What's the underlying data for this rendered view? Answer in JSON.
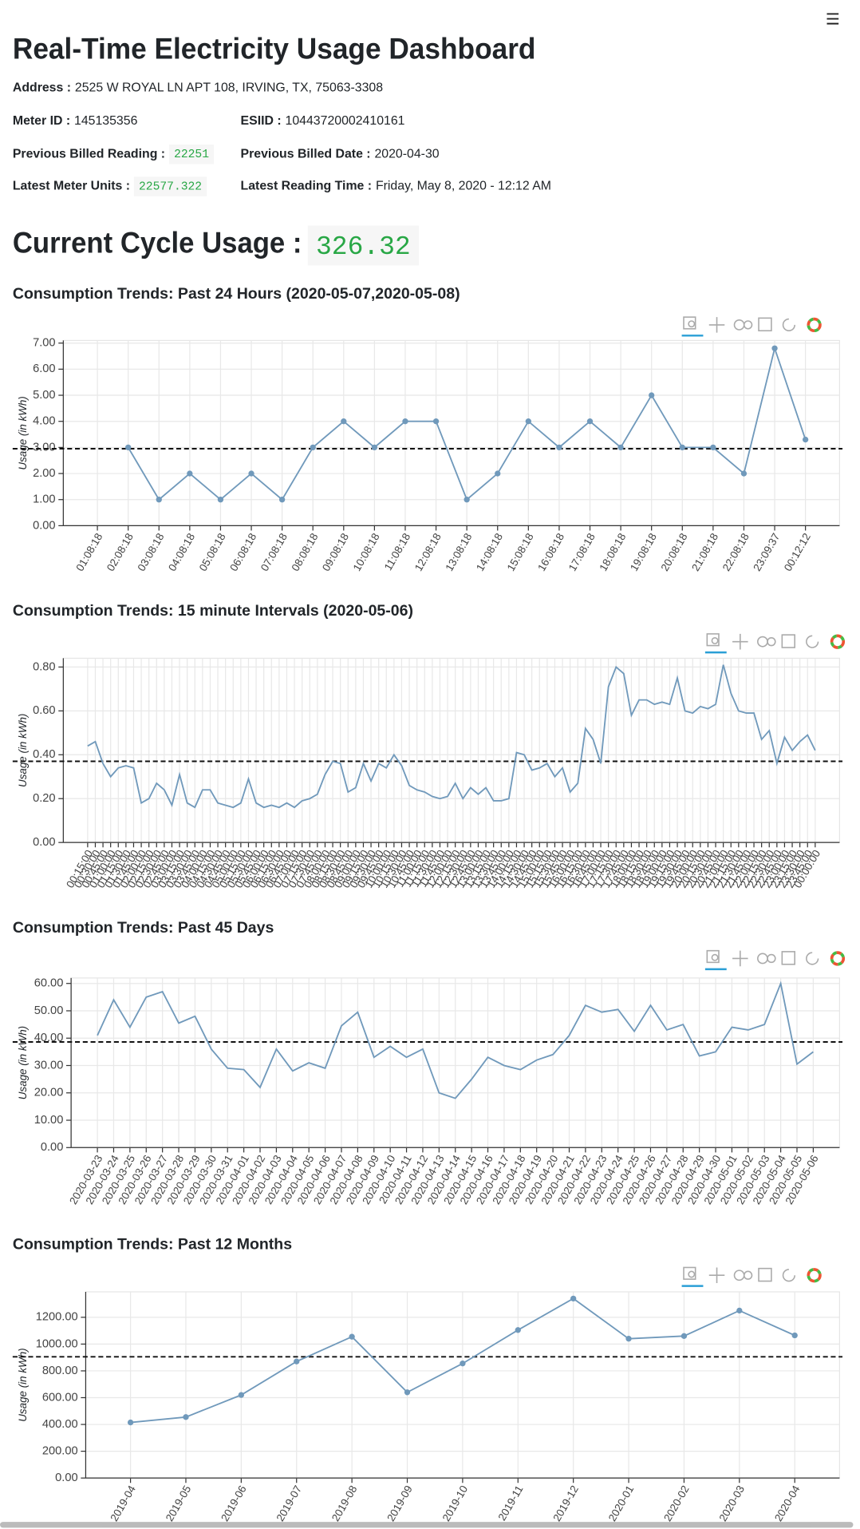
{
  "header": {
    "title": "Real-Time Electricity Usage Dashboard",
    "address": {
      "label": "Address :",
      "value": "2525 W ROYAL LN APT 108, IRVING, TX, 75063-3308"
    },
    "meter_id": {
      "label": "Meter ID :",
      "value": "145135356"
    },
    "esiid": {
      "label": "ESIID :",
      "value": "10443720002410161"
    },
    "prev_reading": {
      "label": "Previous Billed Reading :",
      "value": "22251"
    },
    "prev_date": {
      "label": "Previous Billed Date :",
      "value": "2020-04-30"
    },
    "latest_units": {
      "label": "Latest Meter Units :",
      "value": "22577.322"
    },
    "latest_time": {
      "label": "Latest Reading Time :",
      "value": "Friday, May 8, 2020 - 12:12 AM"
    },
    "cycle_usage": {
      "label": "Current Cycle Usage :",
      "value": "326.32"
    }
  },
  "chart_data": [
    {
      "type": "line",
      "title": "Consumption Trends: Past 24 Hours (2020-05-07,2020-05-08)",
      "y_label": "Usage (in kWh)",
      "categories": [
        "01:08:18",
        "02:08:18",
        "03:08:18",
        "04:08:18",
        "05:08:18",
        "06:08:18",
        "07:08:18",
        "08:08:18",
        "09:08:18",
        "10:08:18",
        "11:08:18",
        "12:08:18",
        "13:08:18",
        "14:08:18",
        "15:08:18",
        "16:08:18",
        "17:08:18",
        "18:08:18",
        "19:08:18",
        "20:08:18",
        "21:08:18",
        "22:08:18",
        "23:09:37",
        "00:12:12"
      ],
      "values": [
        null,
        3,
        1,
        2,
        1,
        2,
        1,
        3,
        4,
        3,
        4,
        4,
        1,
        2,
        4,
        3,
        4,
        3,
        5,
        3,
        3,
        2,
        6.8,
        3.3
      ],
      "color": "#7099bb",
      "markers": true,
      "mean": 2.95,
      "ylim": [
        0,
        7.1
      ],
      "yticks": [
        {
          "value": 0,
          "label": "0.00"
        },
        {
          "value": 1,
          "label": "1.00"
        },
        {
          "value": 2,
          "label": "2.00"
        },
        {
          "value": 3,
          "label": "3.00"
        },
        {
          "value": 4,
          "label": "4.00"
        },
        {
          "value": 5,
          "label": "5.00"
        },
        {
          "value": 6,
          "label": "6.00"
        },
        {
          "value": 7,
          "label": "7.00"
        }
      ],
      "grid": true
    },
    {
      "type": "line",
      "title": "Consumption Trends: 15 minute Intervals (2020-05-06)",
      "y_label": "Usage (in kWh)",
      "categories": [
        "00:15:00",
        "00:30:00",
        "00:45:00",
        "01:00:00",
        "01:15:00",
        "01:30:00",
        "01:45:00",
        "02:00:00",
        "02:15:00",
        "02:30:00",
        "02:45:00",
        "03:00:00",
        "03:15:00",
        "03:30:00",
        "03:45:00",
        "04:00:00",
        "04:15:00",
        "04:30:00",
        "04:45:00",
        "05:00:00",
        "05:15:00",
        "05:30:00",
        "05:45:00",
        "06:00:00",
        "06:15:00",
        "06:30:00",
        "06:45:00",
        "07:00:00",
        "07:15:00",
        "07:30:00",
        "07:45:00",
        "08:00:00",
        "08:15:00",
        "08:30:00",
        "08:45:00",
        "09:00:00",
        "09:15:00",
        "09:30:00",
        "09:45:00",
        "10:00:00",
        "10:15:00",
        "10:30:00",
        "10:45:00",
        "11:00:00",
        "11:15:00",
        "11:30:00",
        "11:45:00",
        "12:00:00",
        "12:15:00",
        "12:30:00",
        "12:45:00",
        "13:00:00",
        "13:15:00",
        "13:30:00",
        "13:45:00",
        "14:00:00",
        "14:15:00",
        "14:30:00",
        "14:45:00",
        "15:00:00",
        "15:15:00",
        "15:30:00",
        "15:45:00",
        "16:00:00",
        "16:15:00",
        "16:30:00",
        "16:45:00",
        "17:00:00",
        "17:15:00",
        "17:30:00",
        "17:45:00",
        "18:00:00",
        "18:15:00",
        "18:30:00",
        "18:45:00",
        "19:00:00",
        "19:15:00",
        "19:30:00",
        "19:45:00",
        "20:00:00",
        "20:15:00",
        "20:30:00",
        "20:45:00",
        "21:00:00",
        "21:15:00",
        "21:30:00",
        "21:45:00",
        "22:00:00",
        "22:15:00",
        "22:30:00",
        "22:45:00",
        "23:00:00",
        "23:15:00",
        "23:30:00",
        "23:45:00",
        "00:00:00"
      ],
      "values": [
        0.44,
        0.46,
        0.36,
        0.3,
        0.34,
        0.35,
        0.34,
        0.18,
        0.2,
        0.27,
        0.24,
        0.17,
        0.31,
        0.18,
        0.16,
        0.24,
        0.24,
        0.18,
        0.17,
        0.16,
        0.18,
        0.29,
        0.18,
        0.16,
        0.17,
        0.16,
        0.18,
        0.16,
        0.19,
        0.2,
        0.22,
        0.31,
        0.37,
        0.36,
        0.23,
        0.25,
        0.36,
        0.28,
        0.36,
        0.34,
        0.4,
        0.35,
        0.26,
        0.24,
        0.23,
        0.21,
        0.2,
        0.21,
        0.27,
        0.2,
        0.25,
        0.22,
        0.25,
        0.19,
        0.19,
        0.2,
        0.41,
        0.4,
        0.33,
        0.34,
        0.36,
        0.3,
        0.34,
        0.23,
        0.27,
        0.52,
        0.47,
        0.36,
        0.71,
        0.8,
        0.77,
        0.58,
        0.65,
        0.65,
        0.63,
        0.64,
        0.63,
        0.75,
        0.6,
        0.59,
        0.62,
        0.61,
        0.63,
        0.81,
        0.68,
        0.6,
        0.59,
        0.59,
        0.47,
        0.51,
        0.36,
        0.48,
        0.42,
        0.46,
        0.49,
        0.42
      ],
      "color": "#7099bb",
      "markers": false,
      "mean": 0.37,
      "ylim": [
        0,
        0.84
      ],
      "yticks": [
        {
          "value": 0,
          "label": "0.00"
        },
        {
          "value": 0.2,
          "label": "0.20"
        },
        {
          "value": 0.4,
          "label": "0.40"
        },
        {
          "value": 0.6,
          "label": "0.60"
        },
        {
          "value": 0.8,
          "label": "0.80"
        }
      ],
      "grid": true
    },
    {
      "type": "line",
      "title": "Consumption Trends: Past 45 Days",
      "y_label": "Usage (in kWh)",
      "categories": [
        "2020-03-23",
        "2020-03-24",
        "2020-03-25",
        "2020-03-26",
        "2020-03-27",
        "2020-03-28",
        "2020-03-29",
        "2020-03-30",
        "2020-03-31",
        "2020-04-01",
        "2020-04-02",
        "2020-04-03",
        "2020-04-04",
        "2020-04-05",
        "2020-04-06",
        "2020-04-07",
        "2020-04-08",
        "2020-04-09",
        "2020-04-10",
        "2020-04-11",
        "2020-04-12",
        "2020-04-13",
        "2020-04-14",
        "2020-04-15",
        "2020-04-16",
        "2020-04-17",
        "2020-04-18",
        "2020-04-19",
        "2020-04-20",
        "2020-04-21",
        "2020-04-22",
        "2020-04-23",
        "2020-04-24",
        "2020-04-25",
        "2020-04-26",
        "2020-04-27",
        "2020-04-28",
        "2020-04-29",
        "2020-04-30",
        "2020-05-01",
        "2020-05-02",
        "2020-05-03",
        "2020-05-04",
        "2020-05-05",
        "2020-05-06"
      ],
      "values": [
        41,
        54,
        44,
        55,
        57,
        45.5,
        48,
        36,
        29,
        28.5,
        22,
        36,
        28,
        31,
        29,
        44.5,
        49.5,
        33,
        37,
        33,
        36,
        20,
        18,
        25,
        33,
        30,
        28.5,
        32,
        34,
        41,
        52,
        49.5,
        50.5,
        42.5,
        52,
        43,
        45,
        33.5,
        35,
        44,
        43,
        45,
        60,
        30.5,
        35
      ],
      "color": "#7099bb",
      "markers": false,
      "mean": 38.6,
      "ylim": [
        0,
        62
      ],
      "yticks": [
        {
          "value": 0,
          "label": "0.00"
        },
        {
          "value": 10,
          "label": "10.00"
        },
        {
          "value": 20,
          "label": "20.00"
        },
        {
          "value": 30,
          "label": "30.00"
        },
        {
          "value": 40,
          "label": "40.00"
        },
        {
          "value": 50,
          "label": "50.00"
        },
        {
          "value": 60,
          "label": "60.00"
        }
      ],
      "grid": true
    },
    {
      "type": "line",
      "title": "Consumption Trends: Past 12 Months",
      "y_label": "Usage (in kWh)",
      "categories": [
        "2019-04",
        "2019-05",
        "2019-06",
        "2019-07",
        "2019-08",
        "2019-09",
        "2019-10",
        "2019-11",
        "2019-12",
        "2020-01",
        "2020-02",
        "2020-03",
        "2020-04"
      ],
      "values": [
        415,
        455,
        620,
        870,
        1055,
        640,
        855,
        1105,
        1340,
        1040,
        1060,
        1250,
        1065
      ],
      "color": "#7099bb",
      "markers": true,
      "mean": 905,
      "ylim": [
        0,
        1390
      ],
      "yticks": [
        {
          "value": 0,
          "label": "0.00"
        },
        {
          "value": 200,
          "label": "200.00"
        },
        {
          "value": 400,
          "label": "400.00"
        },
        {
          "value": 600,
          "label": "600.00"
        },
        {
          "value": 800,
          "label": "800.00"
        },
        {
          "value": 1000,
          "label": "1000.00"
        },
        {
          "value": 1200,
          "label": "1200.00"
        }
      ],
      "grid": true
    }
  ]
}
